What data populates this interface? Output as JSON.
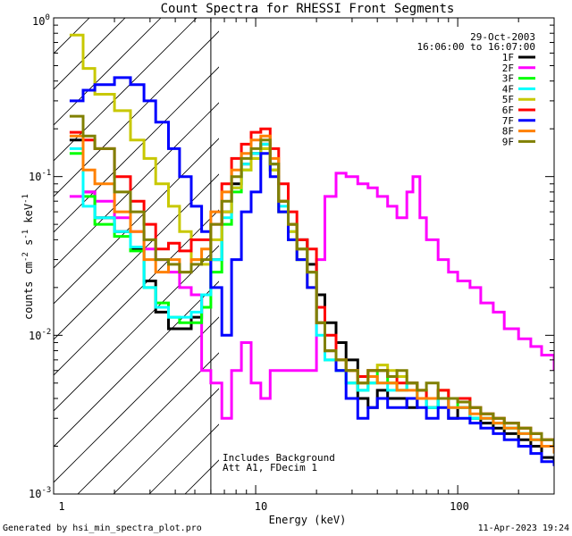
{
  "chart_data": {
    "type": "line",
    "title": "Count Spectra for RHESSI Front Segments",
    "xlabel": "Energy (keV)",
    "ylabel": "counts cm",
    "ylabel_parts": {
      "exp1": "-2",
      "s": " s",
      "exp2": "-1",
      "kev": " keV",
      "exp3": "-1"
    },
    "x_scale": "log",
    "y_scale": "log",
    "xlim": [
      1.0,
      300.0
    ],
    "ylim": [
      0.001,
      1.0
    ],
    "x_tick_labels": [
      {
        "value": 1,
        "label": "1"
      },
      {
        "value": 10,
        "label": "10"
      },
      {
        "value": 100,
        "label": "100"
      }
    ],
    "y_tick_labels": [
      {
        "value": 1.0,
        "base": "10",
        "exp": "0"
      },
      {
        "value": 0.1,
        "base": "10",
        "exp": "-1"
      },
      {
        "value": 0.01,
        "base": "10",
        "exp": "-2"
      },
      {
        "value": 0.001,
        "base": "10",
        "exp": "-3"
      }
    ],
    "date": "29-Oct-2003",
    "time_range": "16:06:00 to 16:07:00",
    "annotation_lines": [
      "Includes Background",
      "Att A1, FDecim 1"
    ],
    "attenuator_cutoff_keV": 6,
    "legend": [
      {
        "name": "1F",
        "color": "#000000"
      },
      {
        "name": "2F",
        "color": "#ff00ff"
      },
      {
        "name": "3F",
        "color": "#00ff00"
      },
      {
        "name": "4F",
        "color": "#00ffff"
      },
      {
        "name": "5F",
        "color": "#c8c800"
      },
      {
        "name": "6F",
        "color": "#ff0000"
      },
      {
        "name": "7F",
        "color": "#0000ff"
      },
      {
        "name": "8F",
        "color": "#ff8000"
      },
      {
        "name": "9F",
        "color": "#808000"
      }
    ],
    "series": [
      {
        "name": "1F",
        "color": "#000000",
        "x": [
          1.2,
          1.4,
          1.6,
          2.0,
          2.4,
          2.8,
          3.2,
          3.7,
          4.2,
          4.8,
          5.4,
          6.0,
          6.8,
          7.6,
          8.5,
          9.5,
          10.6,
          11.8,
          13.0,
          14.5,
          16.0,
          18.0,
          20.0,
          22.0,
          25.0,
          28.0,
          32.0,
          36.0,
          40.0,
          45.0,
          50.0,
          56.0,
          63.0,
          70.0,
          80.0,
          90.0,
          100.0,
          115.0,
          130.0,
          150.0,
          170.0,
          200.0,
          230.0,
          260.0,
          300.0
        ],
        "y": [
          0.17,
          0.08,
          0.055,
          0.045,
          0.035,
          0.022,
          0.014,
          0.011,
          0.011,
          0.013,
          0.018,
          0.03,
          0.06,
          0.09,
          0.12,
          0.14,
          0.16,
          0.12,
          0.07,
          0.05,
          0.04,
          0.028,
          0.018,
          0.012,
          0.009,
          0.007,
          0.004,
          0.0035,
          0.0045,
          0.004,
          0.004,
          0.0035,
          0.004,
          0.0035,
          0.004,
          0.003,
          0.0035,
          0.003,
          0.0028,
          0.0026,
          0.0024,
          0.0022,
          0.002,
          0.0017,
          0.0016
        ]
      },
      {
        "name": "2F",
        "color": "#ff00ff",
        "x": [
          1.2,
          1.4,
          1.6,
          2.0,
          2.4,
          2.8,
          3.2,
          3.7,
          4.2,
          4.8,
          5.4,
          6.0,
          6.8,
          7.6,
          8.5,
          9.5,
          10.6,
          11.8,
          13.0,
          14.5,
          16.0,
          18.0,
          20.0,
          22.0,
          25.0,
          28.0,
          32.0,
          36.0,
          40.0,
          45.0,
          50.0,
          56.0,
          60.0,
          65.0,
          70.0,
          80.0,
          90.0,
          100.0,
          115.0,
          130.0,
          150.0,
          170.0,
          200.0,
          230.0,
          260.0,
          300.0
        ],
        "y": [
          0.075,
          0.08,
          0.07,
          0.055,
          0.045,
          0.035,
          0.03,
          0.025,
          0.02,
          0.018,
          0.006,
          0.005,
          0.003,
          0.006,
          0.009,
          0.005,
          0.004,
          0.006,
          0.006,
          0.006,
          0.006,
          0.006,
          0.03,
          0.075,
          0.105,
          0.1,
          0.09,
          0.085,
          0.075,
          0.065,
          0.055,
          0.08,
          0.1,
          0.055,
          0.04,
          0.03,
          0.025,
          0.022,
          0.02,
          0.016,
          0.014,
          0.011,
          0.0095,
          0.0085,
          0.0075,
          0.006
        ]
      },
      {
        "name": "3F",
        "color": "#00ff00",
        "x": [
          1.2,
          1.4,
          1.6,
          2.0,
          2.4,
          2.8,
          3.2,
          3.7,
          4.2,
          4.8,
          5.4,
          6.0,
          6.8,
          7.6,
          8.5,
          9.5,
          10.6,
          11.8,
          13.0,
          14.5,
          16.0,
          18.0,
          20.0,
          22.0,
          25.0,
          28.0,
          32.0,
          36.0,
          40.0,
          45.0,
          50.0,
          56.0,
          63.0,
          70.0,
          80.0,
          90.0,
          100.0,
          115.0,
          130.0,
          150.0,
          170.0,
          200.0,
          230.0,
          260.0,
          300.0
        ],
        "y": [
          0.14,
          0.075,
          0.05,
          0.042,
          0.034,
          0.02,
          0.016,
          0.013,
          0.012,
          0.012,
          0.015,
          0.025,
          0.05,
          0.08,
          0.11,
          0.13,
          0.15,
          0.11,
          0.06,
          0.04,
          0.03,
          0.025,
          0.012,
          0.007,
          0.006,
          0.005,
          0.0045,
          0.005,
          0.006,
          0.005,
          0.0045,
          0.005,
          0.004,
          0.0035,
          0.004,
          0.004,
          0.0035,
          0.003,
          0.003,
          0.0028,
          0.0026,
          0.0024,
          0.0022,
          0.002,
          0.0018
        ]
      },
      {
        "name": "4F",
        "color": "#00ffff",
        "x": [
          1.2,
          1.4,
          1.6,
          2.0,
          2.4,
          2.8,
          3.2,
          3.7,
          4.2,
          4.8,
          5.4,
          6.0,
          6.8,
          7.6,
          8.5,
          9.5,
          10.6,
          11.8,
          13.0,
          14.5,
          16.0,
          18.0,
          20.0,
          22.0,
          25.0,
          28.0,
          32.0,
          36.0,
          40.0,
          45.0,
          50.0,
          56.0,
          63.0,
          70.0,
          80.0,
          90.0,
          100.0,
          115.0,
          130.0,
          150.0,
          170.0,
          200.0,
          230.0,
          260.0,
          300.0
        ],
        "y": [
          0.15,
          0.065,
          0.055,
          0.045,
          0.036,
          0.02,
          0.015,
          0.013,
          0.013,
          0.014,
          0.018,
          0.03,
          0.055,
          0.085,
          0.12,
          0.14,
          0.16,
          0.12,
          0.065,
          0.045,
          0.035,
          0.025,
          0.01,
          0.007,
          0.006,
          0.005,
          0.0045,
          0.005,
          0.005,
          0.0045,
          0.0045,
          0.005,
          0.004,
          0.0035,
          0.004,
          0.0035,
          0.0035,
          0.003,
          0.003,
          0.0028,
          0.0026,
          0.0024,
          0.0022,
          0.002,
          0.0018
        ]
      },
      {
        "name": "5F",
        "color": "#c8c800",
        "x": [
          1.2,
          1.4,
          1.6,
          2.0,
          2.4,
          2.8,
          3.2,
          3.7,
          4.2,
          4.8,
          5.4,
          6.0,
          6.8,
          7.6,
          8.5,
          9.5,
          10.6,
          11.8,
          13.0,
          14.5,
          16.0,
          18.0,
          20.0,
          22.0,
          25.0,
          28.0,
          32.0,
          36.0,
          40.0,
          45.0,
          50.0,
          56.0,
          63.0,
          70.0,
          80.0,
          90.0,
          100.0,
          115.0,
          130.0,
          150.0,
          170.0,
          200.0,
          230.0,
          260.0,
          300.0
        ],
        "y": [
          0.78,
          0.48,
          0.33,
          0.26,
          0.17,
          0.13,
          0.09,
          0.065,
          0.045,
          0.03,
          0.028,
          0.04,
          0.06,
          0.085,
          0.11,
          0.13,
          0.15,
          0.11,
          0.06,
          0.045,
          0.03,
          0.02,
          0.012,
          0.008,
          0.007,
          0.006,
          0.005,
          0.006,
          0.0065,
          0.006,
          0.0055,
          0.005,
          0.0045,
          0.004,
          0.0045,
          0.004,
          0.004,
          0.0035,
          0.0032,
          0.003,
          0.0028,
          0.0026,
          0.0024,
          0.0022,
          0.002
        ]
      },
      {
        "name": "6F",
        "color": "#ff0000",
        "x": [
          1.2,
          1.4,
          1.6,
          2.0,
          2.4,
          2.8,
          3.2,
          3.7,
          4.2,
          4.8,
          5.4,
          6.0,
          6.8,
          7.6,
          8.5,
          9.5,
          10.6,
          11.8,
          13.0,
          14.5,
          16.0,
          18.0,
          20.0,
          22.0,
          25.0,
          28.0,
          32.0,
          36.0,
          40.0,
          45.0,
          50.0,
          56.0,
          63.0,
          70.0,
          80.0,
          90.0,
          100.0,
          115.0,
          130.0,
          150.0,
          170.0,
          200.0,
          230.0,
          260.0,
          300.0
        ],
        "y": [
          0.19,
          0.17,
          0.15,
          0.1,
          0.07,
          0.05,
          0.035,
          0.038,
          0.034,
          0.04,
          0.04,
          0.05,
          0.09,
          0.13,
          0.16,
          0.19,
          0.2,
          0.15,
          0.09,
          0.06,
          0.04,
          0.035,
          0.015,
          0.01,
          0.007,
          0.006,
          0.0055,
          0.006,
          0.006,
          0.0055,
          0.005,
          0.005,
          0.0045,
          0.004,
          0.0045,
          0.004,
          0.004,
          0.0035,
          0.0032,
          0.003,
          0.0028,
          0.0026,
          0.0024,
          0.0022,
          0.002
        ]
      },
      {
        "name": "7F",
        "color": "#0000ff",
        "x": [
          1.2,
          1.4,
          1.6,
          2.0,
          2.4,
          2.8,
          3.2,
          3.7,
          4.2,
          4.8,
          5.4,
          6.0,
          6.8,
          7.6,
          8.5,
          9.5,
          10.6,
          11.8,
          13.0,
          14.5,
          16.0,
          18.0,
          20.0,
          22.0,
          25.0,
          28.0,
          32.0,
          36.0,
          40.0,
          45.0,
          50.0,
          56.0,
          63.0,
          70.0,
          80.0,
          90.0,
          100.0,
          115.0,
          130.0,
          150.0,
          170.0,
          200.0,
          230.0,
          260.0,
          300.0
        ],
        "y": [
          0.3,
          0.35,
          0.38,
          0.42,
          0.38,
          0.3,
          0.22,
          0.15,
          0.1,
          0.065,
          0.045,
          0.02,
          0.01,
          0.03,
          0.06,
          0.08,
          0.14,
          0.1,
          0.06,
          0.04,
          0.03,
          0.02,
          0.012,
          0.008,
          0.006,
          0.004,
          0.003,
          0.0035,
          0.004,
          0.0035,
          0.0035,
          0.004,
          0.0035,
          0.003,
          0.0035,
          0.003,
          0.003,
          0.0028,
          0.0026,
          0.0024,
          0.0022,
          0.002,
          0.0018,
          0.0016,
          0.0015
        ]
      },
      {
        "name": "8F",
        "color": "#ff8000",
        "x": [
          1.2,
          1.4,
          1.6,
          2.0,
          2.4,
          2.8,
          3.2,
          3.7,
          4.2,
          4.8,
          5.4,
          6.0,
          6.8,
          7.6,
          8.5,
          9.5,
          10.6,
          11.8,
          13.0,
          14.5,
          16.0,
          18.0,
          20.0,
          22.0,
          25.0,
          28.0,
          32.0,
          36.0,
          40.0,
          45.0,
          50.0,
          56.0,
          63.0,
          70.0,
          80.0,
          90.0,
          100.0,
          115.0,
          130.0,
          150.0,
          170.0,
          200.0,
          230.0,
          260.0,
          300.0
        ],
        "y": [
          0.18,
          0.11,
          0.09,
          0.06,
          0.045,
          0.03,
          0.025,
          0.03,
          0.025,
          0.03,
          0.035,
          0.06,
          0.08,
          0.11,
          0.14,
          0.17,
          0.18,
          0.13,
          0.07,
          0.05,
          0.035,
          0.025,
          0.012,
          0.008,
          0.007,
          0.006,
          0.005,
          0.0055,
          0.005,
          0.005,
          0.0045,
          0.0045,
          0.004,
          0.004,
          0.004,
          0.0035,
          0.0035,
          0.0032,
          0.003,
          0.0028,
          0.0026,
          0.0024,
          0.0022,
          0.002,
          0.0018
        ]
      },
      {
        "name": "9F",
        "color": "#808000",
        "x": [
          1.2,
          1.4,
          1.6,
          2.0,
          2.4,
          2.8,
          3.2,
          3.7,
          4.2,
          4.8,
          5.4,
          6.0,
          6.8,
          7.6,
          8.5,
          9.5,
          10.6,
          11.8,
          13.0,
          14.5,
          16.0,
          18.0,
          20.0,
          22.0,
          25.0,
          28.0,
          32.0,
          36.0,
          40.0,
          45.0,
          50.0,
          56.0,
          63.0,
          70.0,
          80.0,
          90.0,
          100.0,
          115.0,
          130.0,
          150.0,
          170.0,
          200.0,
          230.0,
          260.0,
          300.0
        ],
        "y": [
          0.24,
          0.18,
          0.15,
          0.08,
          0.06,
          0.04,
          0.03,
          0.028,
          0.025,
          0.028,
          0.03,
          0.05,
          0.07,
          0.1,
          0.13,
          0.15,
          0.17,
          0.12,
          0.07,
          0.05,
          0.035,
          0.025,
          0.012,
          0.008,
          0.007,
          0.006,
          0.005,
          0.006,
          0.006,
          0.0055,
          0.006,
          0.005,
          0.0045,
          0.005,
          0.004,
          0.004,
          0.0038,
          0.0035,
          0.0032,
          0.003,
          0.0028,
          0.0026,
          0.0024,
          0.0022,
          0.002
        ]
      }
    ]
  },
  "footer": {
    "generated_by": "Generated by hsi_min_spectra_plot.pro",
    "timestamp": "11-Apr-2023 19:24"
  }
}
